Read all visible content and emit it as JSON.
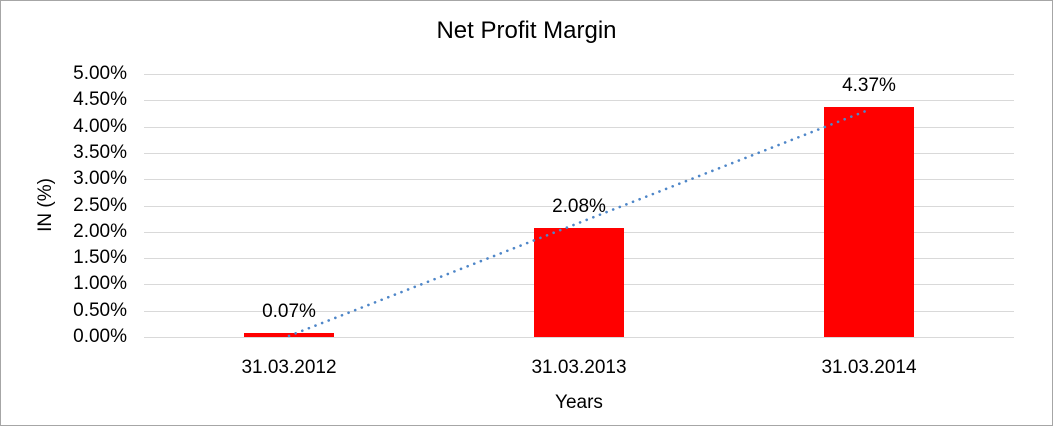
{
  "chart_data": {
    "type": "bar",
    "title": "Net Profit Margin",
    "xlabel": "Years",
    "ylabel": "IN (%)",
    "categories": [
      "31.03.2012",
      "31.03.2013",
      "31.03.2014"
    ],
    "values": [
      0.07,
      2.08,
      4.37
    ],
    "data_labels": [
      "0.07%",
      "2.08%",
      "4.37%"
    ],
    "ylim": [
      0,
      5
    ],
    "ytick_step": 0.5,
    "ytick_labels": [
      "5.00%",
      "4.50%",
      "4.00%",
      "3.50%",
      "3.00%",
      "2.50%",
      "2.00%",
      "1.50%",
      "1.00%",
      "0.50%",
      "0.00%"
    ],
    "grid": true,
    "legend": "none",
    "trendline": {
      "type": "linear",
      "style": "dotted",
      "fit_values_at_first_and_last_category": [
        0.02,
        4.32
      ]
    },
    "colors": {
      "bar": "#ff0000",
      "trendline": "#4e86c8",
      "gridline": "#d9d9d9",
      "text": "#000000",
      "background": "#ffffff",
      "frame_border": "#a6a6a6"
    }
  }
}
